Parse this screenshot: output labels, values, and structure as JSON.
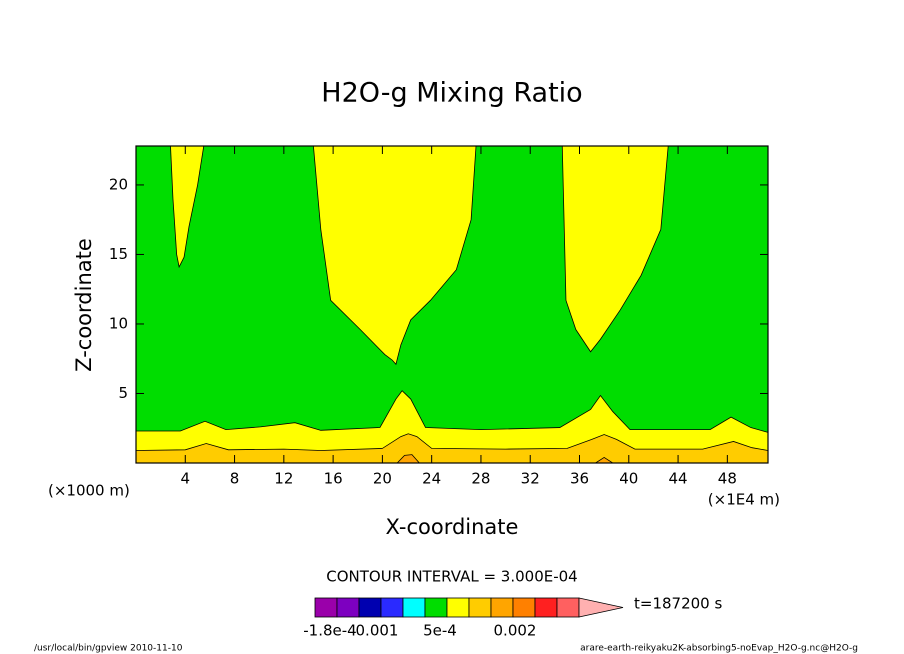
{
  "chart_data": {
    "type": "contour",
    "title": "H2O-g Mixing Ratio",
    "x_label": "X-coordinate",
    "y_label": "Z-coordinate",
    "x_unit": "(×1E4 m)",
    "y_unit": "(×1000 m)",
    "xlim": [
      0,
      51.3
    ],
    "ylim": [
      0,
      22.8
    ],
    "xticks": [
      4,
      8,
      12,
      16,
      20,
      24,
      28,
      32,
      36,
      40,
      44,
      48
    ],
    "yticks": [
      5,
      10,
      15,
      20
    ],
    "background_color": "#00dd00",
    "regions": [
      {
        "color": "#ffff00",
        "x": [
          2.8,
          3.0,
          3.3,
          3.5,
          3.9,
          4.3,
          5.0,
          5.5
        ],
        "z": [
          22.8,
          19,
          15,
          14.1,
          14.8,
          17,
          20,
          22.8
        ]
      },
      {
        "color": "#ffff00",
        "x": [
          14.4,
          15.0,
          15.8,
          18.2,
          20.2,
          20.8,
          21.1,
          21.5,
          22.3,
          23.9,
          26.0,
          27.2,
          27.6
        ],
        "z": [
          22.8,
          16.8,
          11.7,
          9.6,
          7.8,
          7.4,
          7.1,
          8.5,
          10.3,
          11.7,
          13.9,
          17.5,
          22.8
        ]
      },
      {
        "color": "#ffff00",
        "x": [
          34.6,
          34.9,
          35.7,
          36.9,
          37.7,
          39.3,
          41.0,
          42.6,
          43.2
        ],
        "z": [
          22.8,
          11.7,
          9.6,
          8.0,
          8.9,
          11.0,
          13.5,
          16.8,
          22.8
        ]
      },
      {
        "color": "#ffff00",
        "x": [
          0,
          0,
          3.6,
          5.6,
          7.3,
          10.1,
          12.9,
          15.0,
          19.8,
          21.1,
          21.6,
          22.3,
          23.5,
          28.0,
          34.4,
          36.9,
          37.7,
          38.7,
          40.1,
          46.6,
          48.3,
          49.9,
          51.3,
          51.3
        ],
        "z": [
          0,
          2.3,
          2.3,
          3.0,
          2.4,
          2.6,
          2.9,
          2.35,
          2.55,
          4.6,
          5.2,
          4.6,
          2.55,
          2.4,
          2.55,
          3.85,
          4.85,
          3.7,
          2.4,
          2.4,
          3.3,
          2.55,
          2.2,
          0
        ]
      },
      {
        "color": "#ffcc00",
        "x": [
          0,
          0,
          4,
          5.7,
          7.5,
          12,
          15,
          20,
          21.5,
          22.1,
          22.8,
          24,
          30,
          35,
          37,
          38,
          39,
          40.5,
          46,
          48.5,
          50,
          51.3,
          51.3
        ],
        "z": [
          0,
          0.9,
          0.95,
          1.4,
          0.95,
          1.0,
          0.9,
          1.05,
          1.9,
          2.1,
          1.9,
          1.05,
          1.0,
          1.05,
          1.7,
          2.05,
          1.7,
          1.0,
          1.0,
          1.55,
          1.1,
          0.9,
          0
        ]
      },
      {
        "color": "#ffa500",
        "x": [
          21.2,
          21.8,
          22.4,
          23.0
        ],
        "z": [
          0,
          0.55,
          0.6,
          0
        ]
      },
      {
        "color": "#ffa500",
        "x": [
          37.3,
          38.0,
          38.7
        ],
        "z": [
          0,
          0.4,
          0
        ]
      }
    ],
    "contour_interval": "CONTOUR INTERVAL = 3.000E-04",
    "colorbar_colors": [
      "#9a00aa",
      "#7d00c0",
      "#0000b0",
      "#2a2aff",
      "#00ffff",
      "#00dd00",
      "#ffff00",
      "#ffcc00",
      "#ffa500",
      "#ff8000",
      "#ff2020",
      "#ff6060",
      "#ffb0b0"
    ],
    "colorbar_labels": [
      "-1.8e-4",
      "0.001",
      "5e-4",
      "0.002"
    ],
    "time_label": "t=187200 s",
    "footer_left": "/usr/local/bin/gpview  2010-11-10",
    "footer_right": "arare-earth-reikyaku2K-absorbing5-noEvap_H2O-g.nc@H2O-g"
  }
}
